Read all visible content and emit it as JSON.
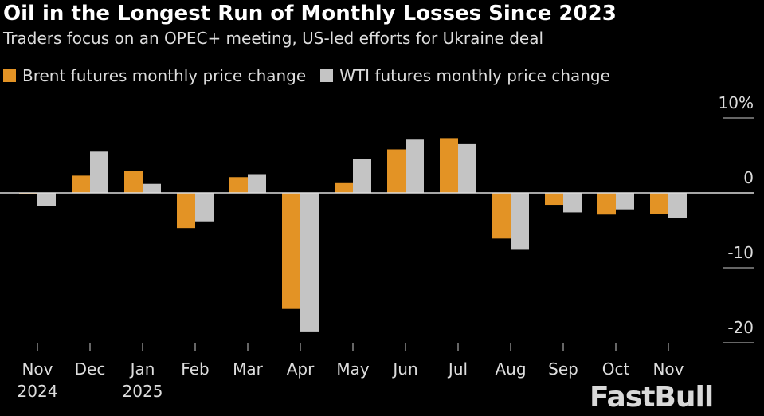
{
  "chart_data": {
    "type": "bar",
    "title": "Oil in the Longest Run of Monthly Losses Since 2023",
    "subtitle": "Traders focus on an OPEC+ meeting, US-led efforts for Ukraine deal",
    "categories": [
      [
        "Nov",
        "2024"
      ],
      [
        "Dec",
        ""
      ],
      [
        "Jan",
        "2025"
      ],
      [
        "Feb",
        ""
      ],
      [
        "Mar",
        ""
      ],
      [
        "Apr",
        ""
      ],
      [
        "May",
        ""
      ],
      [
        "Jun",
        ""
      ],
      [
        "Jul",
        ""
      ],
      [
        "Aug",
        ""
      ],
      [
        "Sep",
        ""
      ],
      [
        "Oct",
        ""
      ],
      [
        "Nov",
        ""
      ]
    ],
    "series": [
      {
        "name": "Brent futures monthly price change",
        "color": "#e39325",
        "values": [
          -0.2,
          2.3,
          2.9,
          -4.7,
          2.1,
          -15.5,
          1.3,
          5.8,
          7.3,
          -6.1,
          -1.6,
          -2.9,
          -2.8
        ]
      },
      {
        "name": "WTI futures monthly price change",
        "color": "#c4c4c4",
        "values": [
          -1.8,
          5.5,
          1.2,
          -3.8,
          2.5,
          -18.5,
          4.5,
          7.1,
          6.5,
          -7.6,
          -2.6,
          -2.2,
          -3.3
        ]
      }
    ],
    "yticks": [
      {
        "v": 10,
        "label": "10%"
      },
      {
        "v": 0,
        "label": "0"
      },
      {
        "v": -10,
        "label": "-10"
      },
      {
        "v": -20,
        "label": "-20"
      }
    ],
    "ylim": [
      -21,
      11
    ],
    "grid": false,
    "legend": "top-left"
  },
  "watermark": "FastBull"
}
